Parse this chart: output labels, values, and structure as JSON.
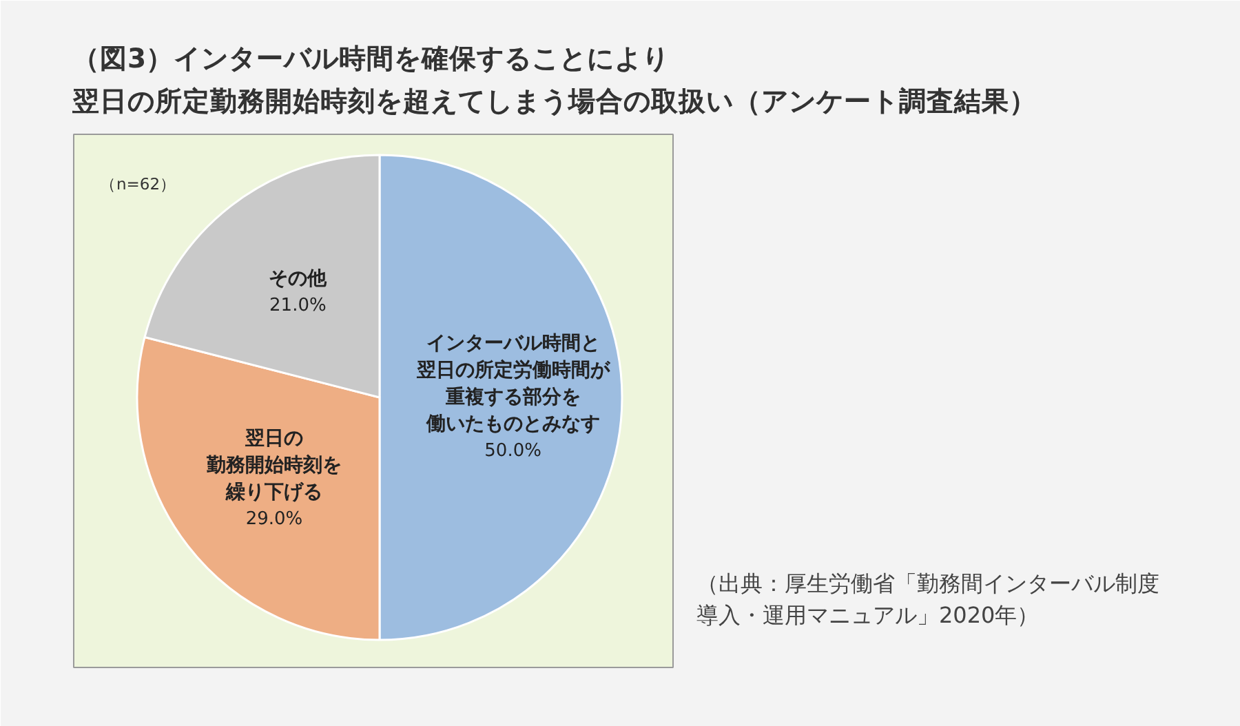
{
  "chart_data": {
    "type": "pie",
    "title": "（図3）インターバル時間を確保することにより翌日の所定勤務開始時刻を超えてしまう場合の取扱い（アンケート調査結果）",
    "categories": [
      "インターバル時間と翌日の所定労働時間が重複する部分を働いたものとみなす",
      "翌日の勤務開始時刻を繰り下げる",
      "その他"
    ],
    "values": [
      50.0,
      29.0,
      21.0
    ],
    "colors": [
      "#9dbde0",
      "#eeae84",
      "#c9c9c9"
    ],
    "value_labels": [
      "50.0%",
      "29.0%",
      "21.0%"
    ],
    "annotations": [
      "（n=62）",
      "（出典：厚生労働省「勤務間インターバル制度導入・運用マニュアル」2020年）"
    ]
  }
}
